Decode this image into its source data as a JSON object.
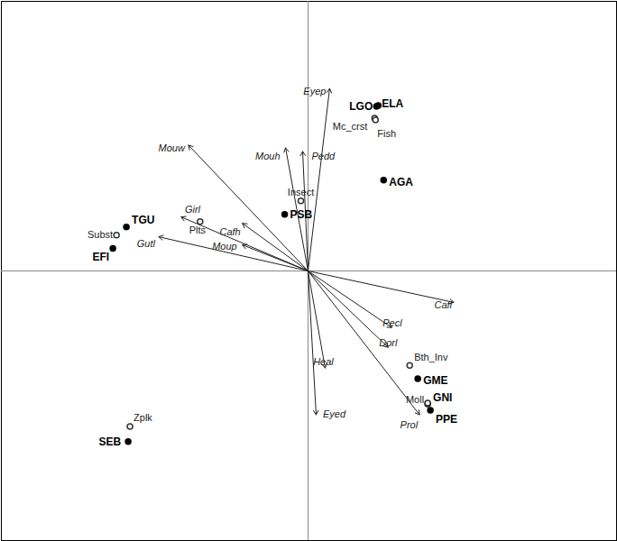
{
  "chart_data": {
    "type": "biplot",
    "xlim": [
      -3.41,
      3.43
    ],
    "ylim": [
      -3.0,
      3.0
    ],
    "tick_labels": false,
    "vectors": [
      {
        "label": "Eyep",
        "x": 0.24,
        "y": 2.03
      },
      {
        "label": "Mouw",
        "x": -1.33,
        "y": 1.4
      },
      {
        "label": "Mouh",
        "x": -0.25,
        "y": 1.37
      },
      {
        "label": "Pedd",
        "x": -0.06,
        "y": 1.33
      },
      {
        "label": "Girl",
        "x": -1.41,
        "y": 0.6
      },
      {
        "label": "Cafh",
        "x": -0.73,
        "y": 0.53
      },
      {
        "label": "Gutl",
        "x": -1.66,
        "y": 0.38
      },
      {
        "label": "Moup",
        "x": -0.73,
        "y": 0.29
      },
      {
        "label": "Cafl",
        "x": 1.62,
        "y": -0.35
      },
      {
        "label": "Pecl",
        "x": 0.93,
        "y": -0.63
      },
      {
        "label": "Dorl",
        "x": 0.89,
        "y": -0.85
      },
      {
        "label": "Heal",
        "x": 0.19,
        "y": -1.08
      },
      {
        "label": "Eyed",
        "x": 0.09,
        "y": -1.6
      },
      {
        "label": "Prol",
        "x": 1.24,
        "y": -1.6
      }
    ],
    "points": [
      {
        "label": "LGO",
        "x": 0.76,
        "y": 1.83,
        "marker": "filled"
      },
      {
        "label": "ELA",
        "x": 0.78,
        "y": 1.84,
        "marker": "filled"
      },
      {
        "label": "AGA",
        "x": 0.84,
        "y": 1.01,
        "marker": "filled"
      },
      {
        "label": "PSB",
        "x": -0.26,
        "y": 0.63,
        "marker": "filled"
      },
      {
        "label": "TGU",
        "x": -2.02,
        "y": 0.49,
        "marker": "filled"
      },
      {
        "label": "EFI",
        "x": -2.17,
        "y": 0.25,
        "marker": "filled"
      },
      {
        "label": "GME",
        "x": 1.22,
        "y": -1.2,
        "marker": "filled"
      },
      {
        "label": "GNI",
        "x": 1.33,
        "y": -1.48,
        "marker": "filled"
      },
      {
        "label": "PPE",
        "x": 1.36,
        "y": -1.55,
        "marker": "filled"
      },
      {
        "label": "SEB",
        "x": -2.0,
        "y": -1.9,
        "marker": "filled"
      },
      {
        "label": "Mc_crst",
        "x": 0.74,
        "y": 1.7,
        "marker": "open"
      },
      {
        "label": "Fish",
        "x": 0.75,
        "y": 1.68,
        "marker": "open"
      },
      {
        "label": "Insect",
        "x": -0.08,
        "y": 0.78,
        "marker": "open"
      },
      {
        "label": "Plts",
        "x": -1.2,
        "y": 0.55,
        "marker": "open"
      },
      {
        "label": "Subst",
        "x": -2.13,
        "y": 0.4,
        "marker": "open"
      },
      {
        "label": "Bth_Inv",
        "x": 1.13,
        "y": -1.05,
        "marker": "open"
      },
      {
        "label": "Moll",
        "x": 1.33,
        "y": -1.47,
        "marker": "open"
      },
      {
        "label": "Zplk",
        "x": -1.98,
        "y": -1.73,
        "marker": "open"
      }
    ]
  }
}
